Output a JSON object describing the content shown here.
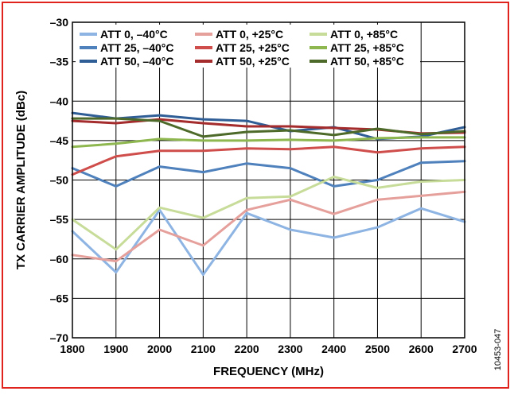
{
  "chart_data": {
    "type": "line",
    "xlabel": "FREQUENCY (MHz)",
    "ylabel": "TX CARRIER AMPLITUDE (dBc)",
    "figure_id": "10453-047",
    "xlim": [
      1800,
      2700
    ],
    "ylim": [
      -70,
      -30
    ],
    "grid": true,
    "legend_position": "top",
    "x": [
      1800,
      1900,
      2000,
      2100,
      2200,
      2300,
      2400,
      2500,
      2600,
      2700
    ],
    "x_tick_labels": [
      "1800",
      "1900",
      "2000",
      "2100",
      "2200",
      "2300",
      "2400",
      "2500",
      "2600",
      "2700"
    ],
    "y_ticks": [
      -30,
      -35,
      -40,
      -45,
      -50,
      -55,
      -60,
      -65,
      -70
    ],
    "y_tick_labels": [
      "–30",
      "–35",
      "–40",
      "–45",
      "–50",
      "–55",
      "–60",
      "–65",
      "–70"
    ],
    "series": [
      {
        "name": "ATT 0, –40°C",
        "color": "#8db4e2",
        "values": [
          -56.5,
          -61.7,
          -53.8,
          -62.0,
          -54.2,
          -56.3,
          -57.3,
          -56.0,
          -53.6,
          -55.3
        ]
      },
      {
        "name": "ATT 25, –40°C",
        "color": "#4f81bd",
        "values": [
          -48.5,
          -50.8,
          -48.3,
          -49.0,
          -47.9,
          -48.5,
          -50.8,
          -50.0,
          -47.8,
          -47.6
        ]
      },
      {
        "name": "ATT 50, –40°C",
        "color": "#2f5d95",
        "values": [
          -41.5,
          -42.2,
          -41.8,
          -42.3,
          -42.5,
          -43.8,
          -43.3,
          -44.8,
          -44.5,
          -43.3
        ]
      },
      {
        "name": "ATT 0, +25°C",
        "color": "#e6a09c",
        "values": [
          -59.5,
          -60.3,
          -56.3,
          -58.3,
          -53.8,
          -52.5,
          -54.3,
          -52.5,
          -52.0,
          -51.5
        ]
      },
      {
        "name": "ATT 25, +25°C",
        "color": "#cf4d4a",
        "values": [
          -49.3,
          -47.0,
          -46.3,
          -46.3,
          -46.0,
          -46.1,
          -45.8,
          -46.5,
          -46.0,
          -45.8
        ]
      },
      {
        "name": "ATT 50, +25°C",
        "color": "#a52c2c",
        "values": [
          -42.5,
          -42.8,
          -42.3,
          -42.8,
          -43.2,
          -43.2,
          -43.4,
          -43.6,
          -44.1,
          -44.0
        ]
      },
      {
        "name": "ATT 0, +85°C",
        "color": "#c8dc9a",
        "values": [
          -55.0,
          -58.8,
          -53.5,
          -54.8,
          -52.3,
          -52.1,
          -49.6,
          -51.0,
          -50.2,
          -50.0
        ]
      },
      {
        "name": "ATT 25, +85°C",
        "color": "#8fb74f",
        "values": [
          -45.8,
          -45.4,
          -44.8,
          -45.0,
          -45.0,
          -44.9,
          -45.0,
          -44.7,
          -44.6,
          -44.6
        ]
      },
      {
        "name": "ATT 50, +85°C",
        "color": "#4e6a2a",
        "values": [
          -42.2,
          -42.2,
          -42.5,
          -44.5,
          -43.9,
          -43.7,
          -44.3,
          -43.5,
          -44.2,
          -43.8
        ]
      }
    ]
  }
}
